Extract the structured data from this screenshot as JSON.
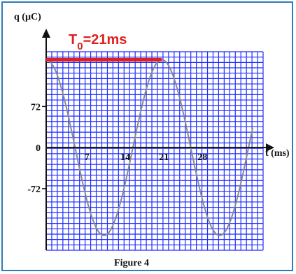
{
  "chart_data": {
    "type": "line",
    "title": "",
    "ylabel": "q (µC)",
    "xlabel": "t (ms)",
    "period_label": {
      "main": "T",
      "sub": "0",
      "rest": "=21ms"
    },
    "xticks": [
      {
        "value": 7,
        "label": "7"
      },
      {
        "value": 14,
        "label": "14"
      },
      {
        "value": 21,
        "label": "21"
      },
      {
        "value": 28,
        "label": "28"
      }
    ],
    "yticks": [
      {
        "value": 72,
        "label": "72"
      },
      {
        "value": 0,
        "label": "0"
      },
      {
        "value": -72,
        "label": "-72"
      }
    ],
    "xlim": [
      0,
      39.4
    ],
    "ylim": [
      -180,
      168
    ],
    "amplitude": 154,
    "period": 21,
    "series": [
      {
        "function": "amplitude*cos(2*pi*t/period)",
        "t_range": [
          0,
          37.5
        ]
      }
    ],
    "colors": {
      "grid": "#1f2cff",
      "curve": "#8a8a8a",
      "axis": "#111111",
      "period_bar": "#e02020",
      "frame": "#2f7db8"
    }
  },
  "figure": {
    "caption": "Figure 4"
  }
}
